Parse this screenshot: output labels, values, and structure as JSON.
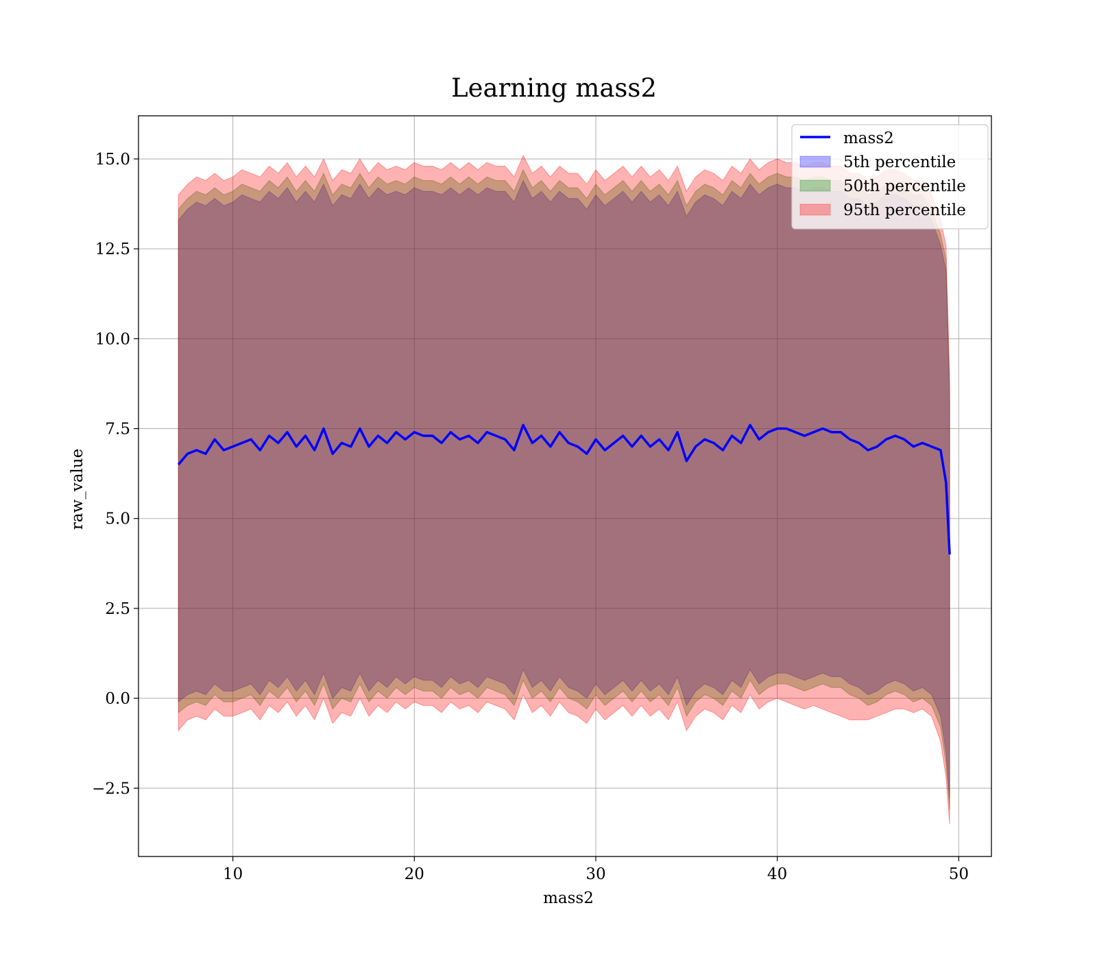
{
  "chart_data": {
    "type": "area",
    "title": "Learning mass2",
    "xlabel": "mass2",
    "ylabel": "raw_value",
    "xlim": [
      4.8,
      51.8
    ],
    "ylim": [
      -4.4,
      16.2
    ],
    "x_ticks": [
      10,
      20,
      30,
      40,
      50
    ],
    "y_ticks": [
      -2.5,
      0.0,
      2.5,
      5.0,
      7.5,
      10.0,
      12.5,
      15.0
    ],
    "x_tick_labels": [
      "10",
      "20",
      "30",
      "40",
      "50"
    ],
    "y_tick_labels": [
      "−2.5",
      "0.0",
      "2.5",
      "5.0",
      "7.5",
      "10.0",
      "12.5",
      "15.0"
    ],
    "grid": true,
    "legend_position": "top-right",
    "series": [
      {
        "name": "mass2",
        "kind": "line",
        "color": "#0000ff"
      },
      {
        "name": "5th percentile",
        "kind": "band",
        "color": "#0000ff",
        "opacity": 0.3
      },
      {
        "name": "50th percentile",
        "kind": "band",
        "color": "#008000",
        "opacity": 0.3
      },
      {
        "name": "95th percentile",
        "kind": "band",
        "color": "#ff0000",
        "opacity": 0.3
      }
    ],
    "x": [
      7.0,
      7.5,
      8.0,
      8.5,
      9.0,
      9.5,
      10.0,
      10.5,
      11.0,
      11.5,
      12.0,
      12.5,
      13.0,
      13.5,
      14.0,
      14.5,
      15.0,
      15.5,
      16.0,
      16.5,
      17.0,
      17.5,
      18.0,
      18.5,
      19.0,
      19.5,
      20.0,
      20.5,
      21.0,
      21.5,
      22.0,
      22.5,
      23.0,
      23.5,
      24.0,
      24.5,
      25.0,
      25.5,
      26.0,
      26.5,
      27.0,
      27.5,
      28.0,
      28.5,
      29.0,
      29.5,
      30.0,
      30.5,
      31.0,
      31.5,
      32.0,
      32.5,
      33.0,
      33.5,
      34.0,
      34.5,
      35.0,
      35.5,
      36.0,
      36.5,
      37.0,
      37.5,
      38.0,
      38.5,
      39.0,
      39.5,
      40.0,
      40.5,
      41.0,
      41.5,
      42.0,
      42.5,
      43.0,
      43.5,
      44.0,
      44.5,
      45.0,
      45.5,
      46.0,
      46.5,
      47.0,
      47.5,
      48.0,
      48.5,
      49.0,
      49.3,
      49.5
    ],
    "mass2": [
      6.5,
      6.8,
      6.9,
      6.8,
      7.2,
      6.9,
      7.0,
      7.1,
      7.2,
      6.9,
      7.3,
      7.1,
      7.4,
      7.0,
      7.3,
      6.9,
      7.5,
      6.8,
      7.1,
      7.0,
      7.5,
      7.0,
      7.3,
      7.1,
      7.4,
      7.2,
      7.4,
      7.3,
      7.3,
      7.1,
      7.4,
      7.2,
      7.3,
      7.1,
      7.4,
      7.3,
      7.2,
      6.9,
      7.6,
      7.1,
      7.3,
      7.0,
      7.4,
      7.1,
      7.0,
      6.8,
      7.2,
      6.9,
      7.1,
      7.3,
      7.0,
      7.3,
      7.0,
      7.2,
      6.9,
      7.4,
      6.6,
      7.0,
      7.2,
      7.1,
      6.9,
      7.3,
      7.1,
      7.6,
      7.2,
      7.4,
      7.5,
      7.5,
      7.4,
      7.3,
      7.4,
      7.5,
      7.4,
      7.4,
      7.2,
      7.1,
      6.9,
      7.0,
      7.2,
      7.3,
      7.2,
      7.0,
      7.1,
      7.0,
      6.9,
      6.0,
      4.0
    ],
    "p95_upper": [
      14.0,
      14.3,
      14.5,
      14.4,
      14.6,
      14.4,
      14.5,
      14.7,
      14.6,
      14.5,
      14.8,
      14.6,
      14.9,
      14.5,
      14.8,
      14.5,
      15.0,
      14.4,
      14.7,
      14.6,
      15.0,
      14.6,
      14.9,
      14.7,
      14.8,
      14.7,
      14.9,
      14.8,
      14.8,
      14.7,
      14.9,
      14.7,
      14.9,
      14.7,
      14.9,
      14.8,
      14.8,
      14.5,
      15.1,
      14.6,
      14.8,
      14.5,
      14.8,
      14.6,
      14.6,
      14.3,
      14.7,
      14.4,
      14.6,
      14.8,
      14.5,
      14.8,
      14.5,
      14.7,
      14.4,
      14.8,
      14.1,
      14.5,
      14.7,
      14.6,
      14.4,
      14.8,
      14.6,
      15.0,
      14.7,
      14.9,
      15.0,
      14.9,
      14.9,
      14.8,
      14.9,
      14.9,
      14.8,
      14.8,
      14.6,
      14.6,
      14.4,
      14.5,
      14.7,
      14.7,
      14.6,
      14.4,
      14.4,
      14.0,
      13.3,
      12.6,
      9.0
    ],
    "p50_upper": [
      13.6,
      13.9,
      14.1,
      14.0,
      14.2,
      14.0,
      14.1,
      14.3,
      14.2,
      14.1,
      14.4,
      14.2,
      14.5,
      14.1,
      14.4,
      14.1,
      14.6,
      14.0,
      14.3,
      14.2,
      14.6,
      14.2,
      14.5,
      14.3,
      14.4,
      14.3,
      14.5,
      14.4,
      14.4,
      14.3,
      14.5,
      14.3,
      14.5,
      14.3,
      14.5,
      14.4,
      14.4,
      14.1,
      14.7,
      14.2,
      14.4,
      14.1,
      14.4,
      14.2,
      14.2,
      13.9,
      14.3,
      14.0,
      14.2,
      14.4,
      14.1,
      14.4,
      14.1,
      14.3,
      14.0,
      14.4,
      13.7,
      14.1,
      14.3,
      14.2,
      14.0,
      14.4,
      14.2,
      14.6,
      14.3,
      14.5,
      14.6,
      14.5,
      14.5,
      14.4,
      14.5,
      14.5,
      14.4,
      14.4,
      14.2,
      14.2,
      14.0,
      14.1,
      14.3,
      14.3,
      14.2,
      14.0,
      14.0,
      13.6,
      12.9,
      12.2,
      8.6
    ],
    "p5_upper": [
      13.3,
      13.6,
      13.8,
      13.7,
      13.9,
      13.7,
      13.8,
      14.0,
      13.9,
      13.8,
      14.1,
      13.9,
      14.2,
      13.8,
      14.1,
      13.8,
      14.3,
      13.7,
      14.0,
      13.9,
      14.3,
      13.9,
      14.2,
      14.0,
      14.1,
      14.0,
      14.2,
      14.1,
      14.1,
      14.0,
      14.2,
      14.0,
      14.2,
      14.0,
      14.2,
      14.1,
      14.1,
      13.8,
      14.4,
      13.9,
      14.1,
      13.8,
      14.1,
      13.9,
      13.9,
      13.6,
      14.0,
      13.7,
      13.9,
      14.1,
      13.8,
      14.1,
      13.8,
      14.0,
      13.7,
      14.1,
      13.4,
      13.8,
      14.0,
      13.9,
      13.7,
      14.1,
      13.9,
      14.3,
      14.0,
      14.2,
      14.3,
      14.2,
      14.2,
      14.1,
      14.2,
      14.2,
      14.1,
      14.1,
      13.9,
      13.9,
      13.7,
      13.8,
      14.0,
      14.0,
      13.9,
      13.7,
      13.7,
      13.3,
      12.6,
      11.9,
      8.3
    ],
    "p5_lower": [
      -0.1,
      0.1,
      0.2,
      0.1,
      0.4,
      0.2,
      0.2,
      0.3,
      0.4,
      0.1,
      0.5,
      0.3,
      0.6,
      0.2,
      0.5,
      0.1,
      0.7,
      0.0,
      0.3,
      0.2,
      0.7,
      0.2,
      0.5,
      0.3,
      0.6,
      0.4,
      0.6,
      0.5,
      0.5,
      0.3,
      0.6,
      0.4,
      0.5,
      0.3,
      0.6,
      0.5,
      0.4,
      0.1,
      0.8,
      0.3,
      0.5,
      0.2,
      0.6,
      0.3,
      0.2,
      0.0,
      0.4,
      0.1,
      0.3,
      0.5,
      0.2,
      0.5,
      0.2,
      0.4,
      0.1,
      0.6,
      -0.2,
      0.2,
      0.4,
      0.3,
      0.1,
      0.5,
      0.3,
      0.8,
      0.4,
      0.6,
      0.7,
      0.7,
      0.6,
      0.5,
      0.6,
      0.7,
      0.6,
      0.6,
      0.4,
      0.3,
      0.1,
      0.2,
      0.4,
      0.5,
      0.4,
      0.2,
      0.3,
      0.1,
      -0.5,
      -1.5,
      -2.8
    ],
    "p50_lower": [
      -0.4,
      -0.2,
      -0.1,
      -0.2,
      0.1,
      -0.1,
      -0.1,
      0.0,
      0.1,
      -0.2,
      0.2,
      0.0,
      0.3,
      -0.1,
      0.2,
      -0.2,
      0.4,
      -0.3,
      0.0,
      -0.1,
      0.4,
      -0.1,
      0.2,
      0.0,
      0.3,
      0.1,
      0.3,
      0.2,
      0.2,
      0.0,
      0.3,
      0.1,
      0.2,
      0.0,
      0.3,
      0.2,
      0.1,
      -0.2,
      0.5,
      0.0,
      0.2,
      -0.1,
      0.3,
      0.0,
      -0.1,
      -0.3,
      0.1,
      -0.2,
      0.0,
      0.2,
      -0.1,
      0.2,
      -0.1,
      0.1,
      -0.2,
      0.3,
      -0.5,
      -0.1,
      0.1,
      0.0,
      -0.2,
      0.2,
      0.0,
      0.5,
      0.1,
      0.3,
      0.4,
      0.4,
      0.3,
      0.2,
      0.3,
      0.4,
      0.3,
      0.3,
      0.1,
      0.0,
      -0.2,
      -0.1,
      0.1,
      0.2,
      0.1,
      -0.1,
      0.0,
      -0.2,
      -0.8,
      -1.8,
      -3.1
    ],
    "p95_lower": [
      -0.9,
      -0.6,
      -0.5,
      -0.6,
      -0.3,
      -0.5,
      -0.5,
      -0.4,
      -0.3,
      -0.6,
      -0.2,
      -0.4,
      -0.1,
      -0.5,
      -0.2,
      -0.6,
      0.0,
      -0.7,
      -0.4,
      -0.5,
      0.0,
      -0.5,
      -0.2,
      -0.4,
      -0.1,
      -0.3,
      -0.1,
      -0.2,
      -0.2,
      -0.4,
      -0.1,
      -0.3,
      -0.2,
      -0.4,
      -0.1,
      -0.2,
      -0.3,
      -0.6,
      0.1,
      -0.4,
      -0.2,
      -0.5,
      -0.1,
      -0.4,
      -0.5,
      -0.7,
      -0.3,
      -0.6,
      -0.4,
      -0.2,
      -0.5,
      -0.2,
      -0.5,
      -0.3,
      -0.6,
      -0.1,
      -0.9,
      -0.5,
      -0.3,
      -0.4,
      -0.6,
      -0.2,
      -0.4,
      0.1,
      -0.3,
      -0.1,
      0.0,
      -0.1,
      -0.2,
      -0.3,
      -0.2,
      -0.3,
      -0.4,
      -0.5,
      -0.6,
      -0.6,
      -0.6,
      -0.5,
      -0.4,
      -0.3,
      -0.3,
      -0.4,
      -0.3,
      -0.5,
      -1.2,
      -2.2,
      -3.5
    ]
  }
}
